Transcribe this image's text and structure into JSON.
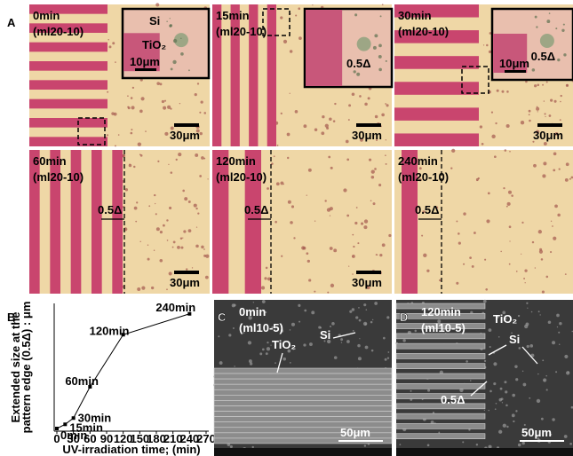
{
  "panel_a": {
    "label": "A",
    "images": [
      {
        "time": "0min",
        "sample": "(ml20-10)",
        "scale": "30μm",
        "inset": {
          "labels": [
            "Si",
            "TiO₂"
          ],
          "scale": "10μm"
        }
      },
      {
        "time": "15min",
        "sample": "(ml20-10)",
        "scale": "30μm",
        "inset": {
          "labels": [
            "0.5Δ"
          ]
        }
      },
      {
        "time": "30min",
        "sample": "(ml20-10)",
        "scale": "30μm",
        "inset": {
          "labels": [
            "0.5Δ"
          ],
          "scale": "10μm"
        }
      },
      {
        "time": "60min",
        "sample": "(ml20-10)",
        "scale": "30μm",
        "edge": "0.5Δ"
      },
      {
        "time": "120min",
        "sample": "(ml20-10)",
        "scale": "30μm",
        "edge": "0.5Δ"
      },
      {
        "time": "240min",
        "sample": "(ml20-10)",
        "edge": "0.5Δ"
      }
    ]
  },
  "chart_data": {
    "type": "line",
    "label": "B",
    "x": [
      0,
      15,
      30,
      60,
      120,
      240
    ],
    "values": [
      0,
      1,
      2.5,
      10,
      22.5,
      27.5
    ],
    "point_labels": [
      "0min",
      "15min",
      "30min",
      "60min",
      "120min",
      "240min"
    ],
    "color": "#000000",
    "xlabel": "UV-irradiation time; (min)",
    "ylabel_lines": [
      "Extended size at the",
      "pattern edge (0.5Δ) : μm"
    ],
    "xlim": [
      0,
      270
    ],
    "xticks": [
      0,
      30,
      60,
      90,
      120,
      150,
      180,
      210,
      240,
      270
    ],
    "ylim": [
      0,
      30
    ]
  },
  "panel_c": {
    "label": "C",
    "time": "0min",
    "sample": "(ml10-5)",
    "labels": [
      "TiO₂",
      "Si"
    ],
    "scale": "50μm"
  },
  "panel_d": {
    "label": "D",
    "time": "120min",
    "sample": "(ml10-5)",
    "labels": [
      "TiO₂",
      "Si",
      "0.5Δ"
    ],
    "scale": "50μm"
  }
}
